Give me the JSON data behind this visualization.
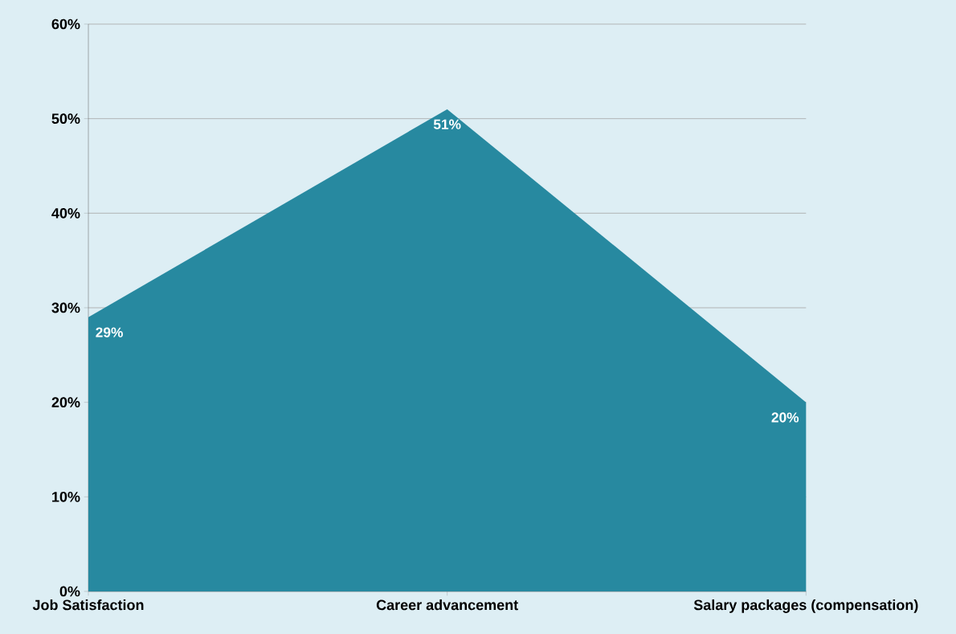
{
  "chart_data": {
    "type": "area",
    "categories": [
      "Job Satisfaction",
      "Career advancement",
      "Salary packages (compensation)"
    ],
    "values": [
      29,
      51,
      20
    ],
    "value_labels": [
      "29%",
      "51%",
      "20%"
    ],
    "color": "#2789a0",
    "ylim": [
      0,
      60
    ],
    "yticks": [
      {
        "value": 0,
        "label": "0%"
      },
      {
        "value": 10,
        "label": "10%"
      },
      {
        "value": 20,
        "label": "20%"
      },
      {
        "value": 30,
        "label": "30%"
      },
      {
        "value": 40,
        "label": "40%"
      },
      {
        "value": 50,
        "label": "50%"
      },
      {
        "value": 60,
        "label": "60%"
      }
    ],
    "grid": "y"
  }
}
